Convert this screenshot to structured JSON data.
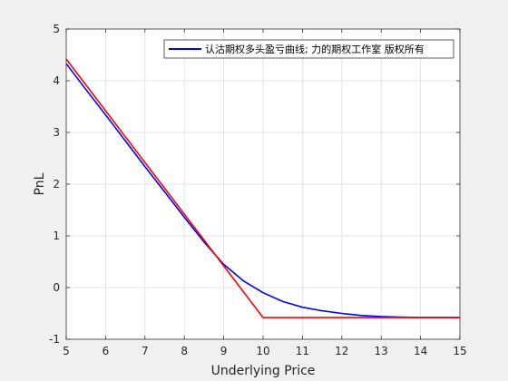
{
  "chart_data": {
    "type": "line",
    "xlabel": "Underlying Price",
    "ylabel": "PnL",
    "xlim": [
      5,
      15
    ],
    "ylim": [
      -1,
      5
    ],
    "xticks": [
      5,
      6,
      7,
      8,
      9,
      10,
      11,
      12,
      13,
      14,
      15
    ],
    "yticks": [
      -1,
      0,
      1,
      2,
      3,
      4,
      5
    ],
    "grid": true,
    "legend_position": "top-right",
    "series": [
      {
        "name": "认沽期权多头盈亏曲线; 力的期权工作室 版权所有",
        "color": "#0000ff",
        "x": [
          5,
          5.5,
          6,
          6.5,
          7,
          7.5,
          8,
          8.5,
          9,
          9.5,
          10,
          10.5,
          11,
          11.5,
          12,
          12.5,
          13,
          13.5,
          14,
          14.5,
          15
        ],
        "y": [
          4.33,
          3.83,
          3.34,
          2.84,
          2.34,
          1.85,
          1.36,
          0.88,
          0.45,
          0.13,
          -0.1,
          -0.27,
          -0.38,
          -0.45,
          -0.5,
          -0.54,
          -0.56,
          -0.57,
          -0.58,
          -0.58,
          -0.58
        ]
      },
      {
        "name": "",
        "color": "#ff0000",
        "x": [
          5,
          10,
          15
        ],
        "y": [
          4.42,
          -0.58,
          -0.58
        ]
      }
    ]
  }
}
